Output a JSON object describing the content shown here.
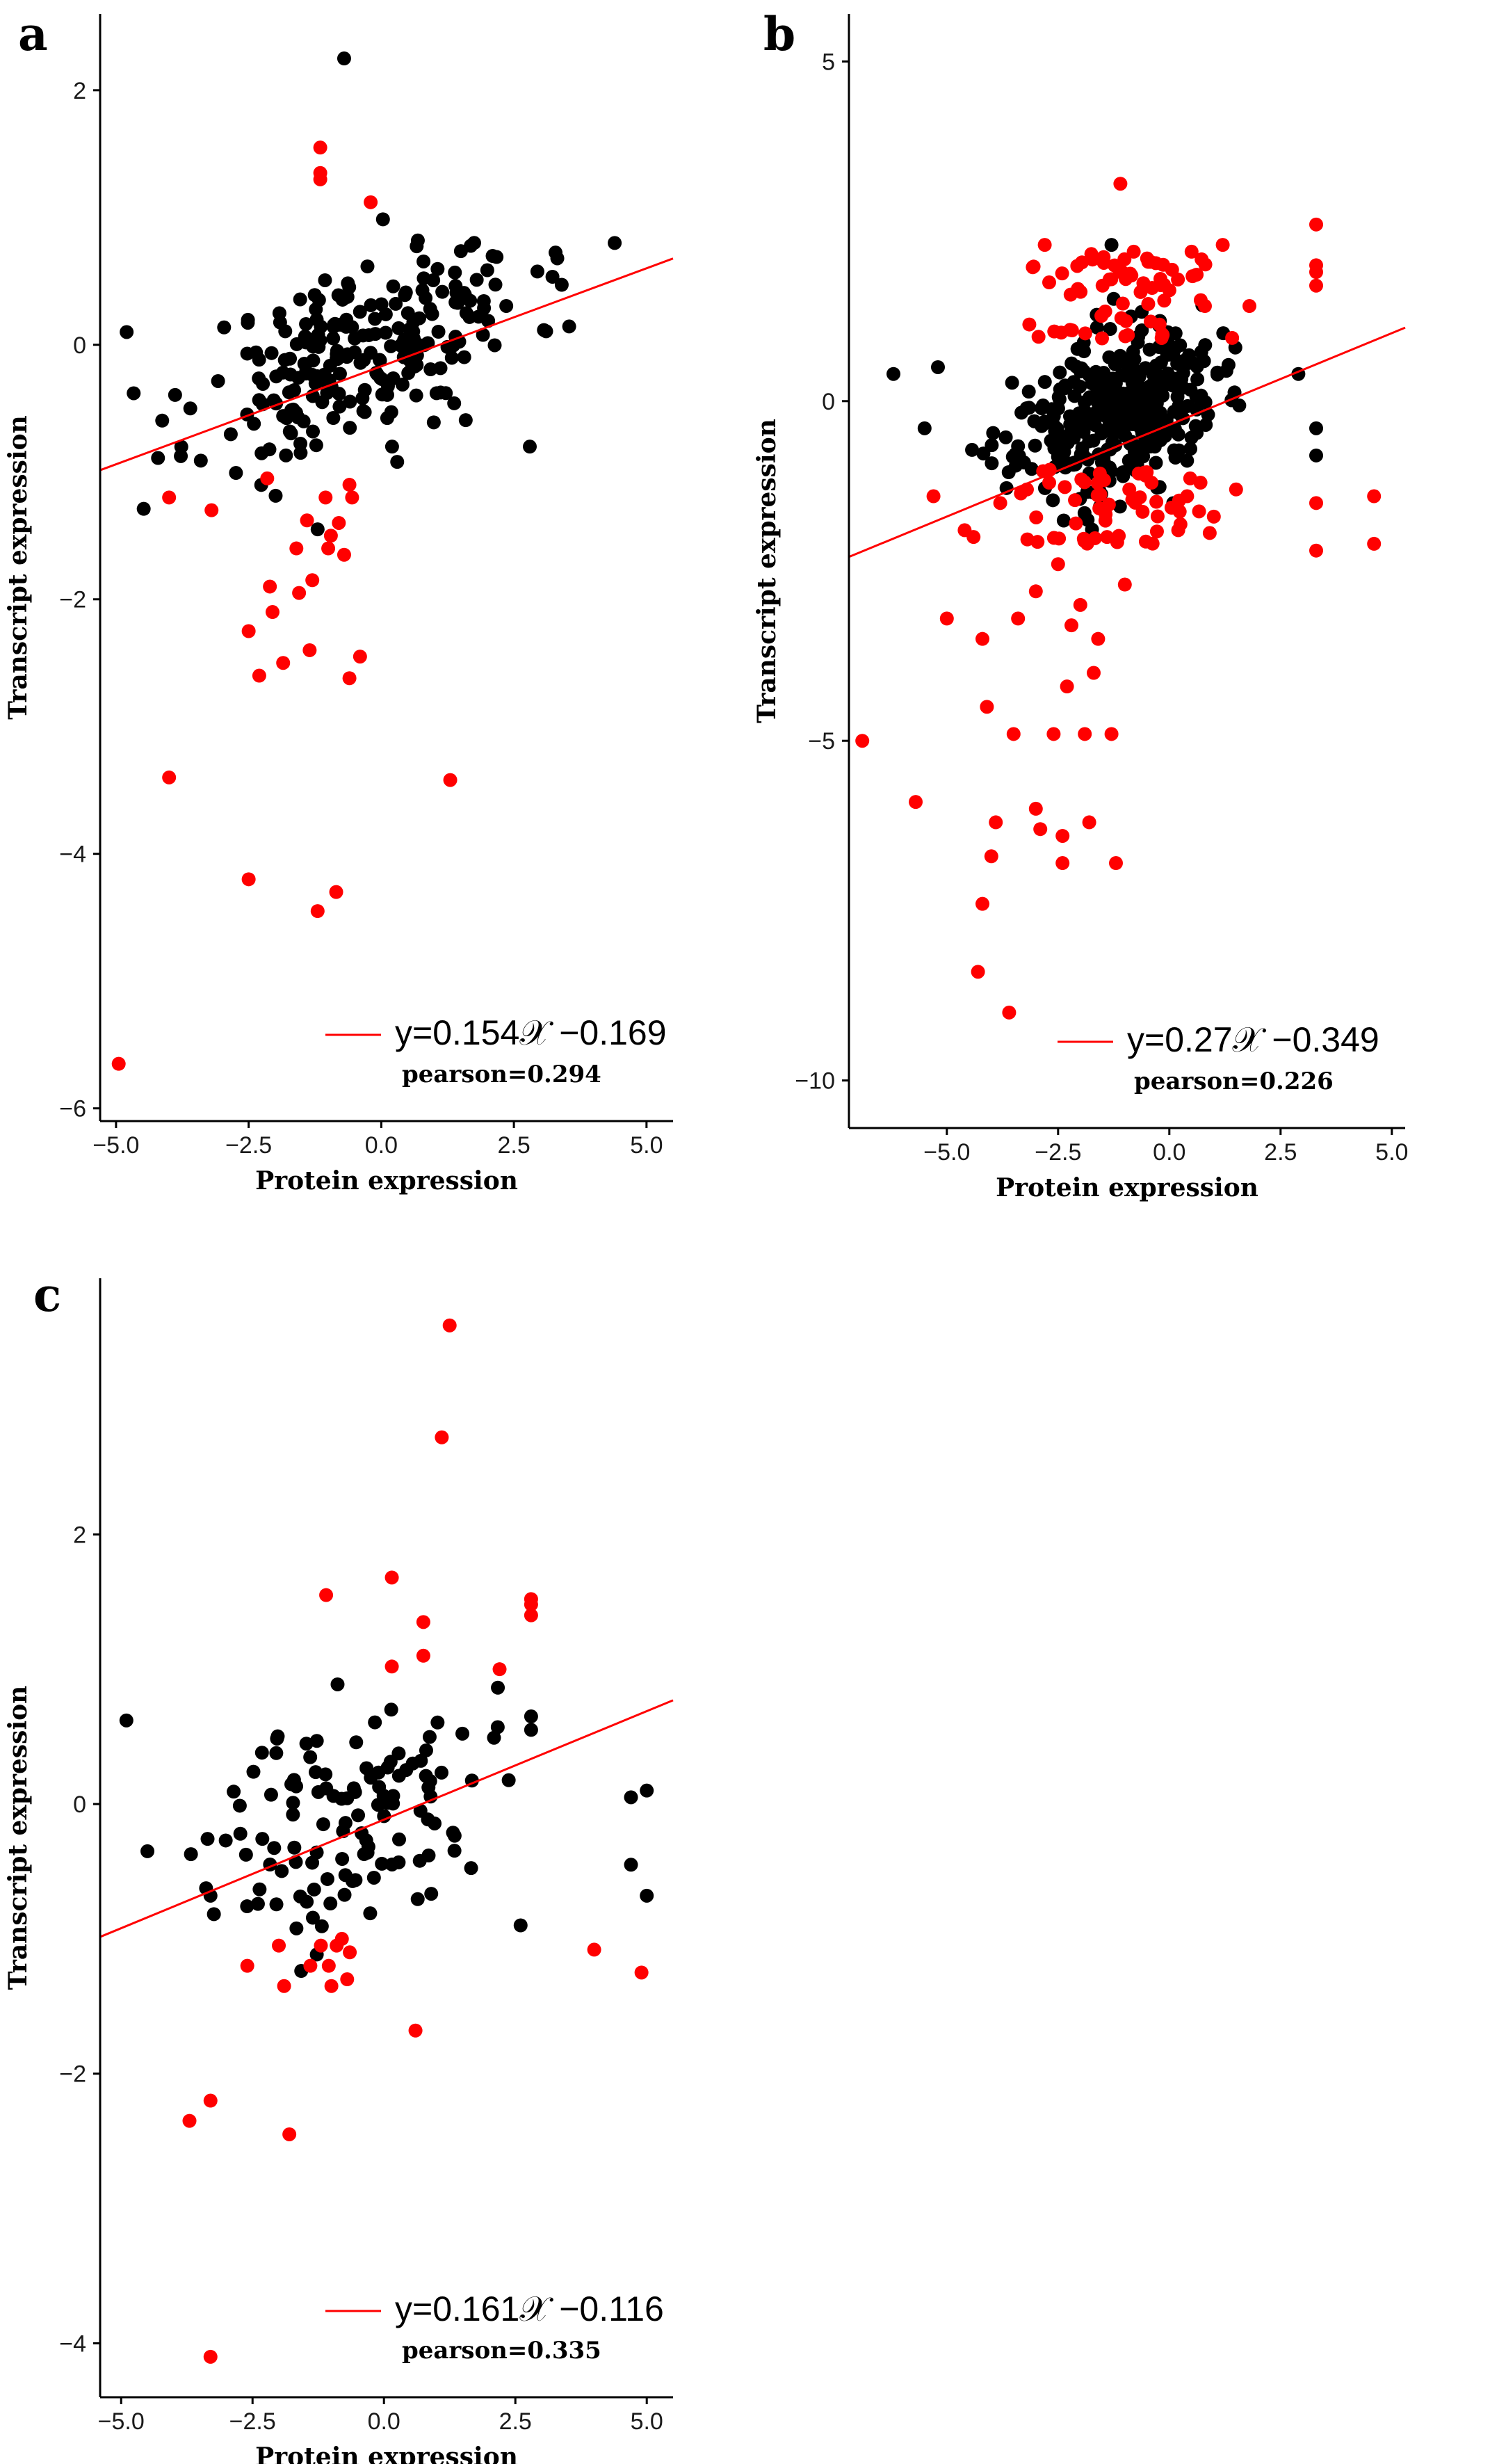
{
  "colors": {
    "in_range": "#000000",
    "outlier": "#ff0000",
    "fit_line": "#ff0000",
    "axis": "#000000"
  },
  "panels": [
    {
      "id": "a",
      "label": "a",
      "xlabel": "Protein expression",
      "ylabel": "Transcript expression",
      "xlim": [
        -5.3,
        5.5
      ],
      "ylim": [
        -6.1,
        2.6
      ],
      "xticks": [
        -5.0,
        -2.5,
        0.0,
        2.5,
        5.0
      ],
      "xtick_labels": [
        "−5.0",
        "−2.5",
        "0.0",
        "2.5",
        "5.0"
      ],
      "yticks": [
        -6,
        -4,
        -2,
        0,
        2
      ],
      "ytick_labels": [
        "−6",
        "−4",
        "−2",
        "0",
        "2"
      ],
      "fit": {
        "slope": 0.154,
        "intercept": -0.169
      },
      "legend": {
        "equation": "y=0.154𝒳 −0.169",
        "pearson": "pearson=0.294"
      },
      "cloud": {
        "n": 240,
        "xmin": -4.8,
        "xmax": 4.4,
        "xmean": -0.3,
        "xsd": 1.55,
        "ysd": 0.36,
        "seed": 11
      },
      "outliers": [
        [
          -4.95,
          -5.65
        ],
        [
          -4.0,
          -3.4
        ],
        [
          -4.0,
          -1.2
        ],
        [
          -3.2,
          -1.3
        ],
        [
          -2.5,
          -4.2
        ],
        [
          -2.5,
          -2.25
        ],
        [
          -2.3,
          -2.6
        ],
        [
          -2.15,
          -1.05
        ],
        [
          -2.1,
          -1.9
        ],
        [
          -2.05,
          -2.1
        ],
        [
          -1.85,
          -2.5
        ],
        [
          -1.6,
          -1.6
        ],
        [
          -1.55,
          -1.95
        ],
        [
          -1.4,
          -1.38
        ],
        [
          -1.35,
          -2.4
        ],
        [
          -1.3,
          -1.85
        ],
        [
          -1.2,
          -4.45
        ],
        [
          -1.15,
          1.55
        ],
        [
          -1.15,
          1.35
        ],
        [
          -1.15,
          1.3
        ],
        [
          -1.05,
          -1.2
        ],
        [
          -1.0,
          -1.6
        ],
        [
          -0.95,
          -1.5
        ],
        [
          -0.85,
          -4.3
        ],
        [
          -0.8,
          -1.4
        ],
        [
          -0.7,
          -1.65
        ],
        [
          -0.6,
          -2.62
        ],
        [
          -0.55,
          -1.2
        ],
        [
          -0.4,
          -2.45
        ],
        [
          -0.2,
          1.12
        ],
        [
          1.3,
          -3.42
        ],
        [
          -0.6,
          -1.1
        ]
      ],
      "extra_black": [
        [
          -0.7,
          2.25
        ],
        [
          -4.8,
          0.1
        ],
        [
          4.4,
          0.8
        ],
        [
          2.8,
          -0.8
        ],
        [
          -3.6,
          -0.5
        ],
        [
          -1.2,
          -1.45
        ],
        [
          0.3,
          -0.92
        ]
      ]
    },
    {
      "id": "b",
      "label": "b",
      "xlabel": "Protein expression",
      "ylabel": "Transcript expression",
      "xlim": [
        -7.2,
        5.3
      ],
      "ylim": [
        -10.7,
        5.7
      ],
      "xticks": [
        -5.0,
        -2.5,
        0.0,
        2.5,
        5.0
      ],
      "xtick_labels": [
        "−5.0",
        "−2.5",
        "0.0",
        "2.5",
        "5.0"
      ],
      "yticks": [
        -10,
        -5,
        0,
        5
      ],
      "ytick_labels": [
        "−10",
        "−5",
        "0",
        "5"
      ],
      "fit": {
        "slope": 0.27,
        "intercept": -0.349
      },
      "legend": {
        "equation": "y=0.27𝒳 −0.349",
        "pearson": "pearson=0.226"
      },
      "cloud": {
        "n": 380,
        "xmin": -6.0,
        "xmax": 3.4,
        "xmean": -1.2,
        "xsd": 1.1,
        "ysd": 0.55,
        "seed": 23
      },
      "outliers": [
        [
          -6.9,
          -5.0
        ],
        [
          -5.7,
          -5.9
        ],
        [
          -5.3,
          -1.4
        ],
        [
          -5.0,
          -3.2
        ],
        [
          -4.6,
          -1.9
        ],
        [
          -4.4,
          -2.0
        ],
        [
          -4.3,
          -8.4
        ],
        [
          -4.2,
          -7.4
        ],
        [
          -4.2,
          -3.5
        ],
        [
          -4.1,
          -4.5
        ],
        [
          -4.0,
          -6.7
        ],
        [
          -3.9,
          -6.2
        ],
        [
          -3.6,
          -9.0
        ],
        [
          -3.5,
          -4.9
        ],
        [
          -3.4,
          -3.2
        ],
        [
          -3.2,
          -1.3
        ],
        [
          -3.0,
          -6.0
        ],
        [
          -3.0,
          -2.8
        ],
        [
          -2.9,
          -6.3
        ],
        [
          -2.8,
          2.3
        ],
        [
          -2.6,
          -4.9
        ],
        [
          -2.5,
          -2.4
        ],
        [
          -2.4,
          -6.4
        ],
        [
          -2.4,
          -6.8
        ],
        [
          -2.3,
          -4.2
        ],
        [
          -2.2,
          -3.3
        ],
        [
          -2.1,
          -1.8
        ],
        [
          -2.0,
          -3.0
        ],
        [
          -1.9,
          -4.9
        ],
        [
          -1.8,
          -6.2
        ],
        [
          -1.7,
          -4.0
        ],
        [
          -1.6,
          -3.5
        ],
        [
          -1.5,
          1.7
        ],
        [
          -1.4,
          -2.0
        ],
        [
          -1.3,
          -4.9
        ],
        [
          -1.2,
          -6.8
        ],
        [
          -1.1,
          3.2
        ],
        [
          -1.0,
          -2.7
        ],
        [
          -0.9,
          -1.3
        ],
        [
          -0.8,
          2.2
        ],
        [
          -0.5,
          2.1
        ],
        [
          -0.2,
          1.8
        ],
        [
          0.2,
          -1.9
        ],
        [
          0.4,
          -1.4
        ],
        [
          0.5,
          2.2
        ],
        [
          0.8,
          1.4
        ],
        [
          1.0,
          -1.7
        ],
        [
          1.2,
          2.3
        ],
        [
          1.5,
          -1.3
        ],
        [
          1.8,
          1.4
        ],
        [
          3.3,
          2.6
        ],
        [
          3.3,
          1.7
        ],
        [
          3.3,
          1.9
        ],
        [
          3.3,
          2.0
        ],
        [
          3.3,
          -1.5
        ],
        [
          3.3,
          -2.2
        ],
        [
          4.6,
          -1.4
        ],
        [
          4.6,
          -2.1
        ],
        [
          -3.8,
          -1.5
        ],
        [
          -2.7,
          -1.2
        ],
        [
          -0.4,
          -1.2
        ],
        [
          0.7,
          -1.2
        ]
      ],
      "cloud_red": {
        "n": 110,
        "xmin": -3.4,
        "xmax": 2.8,
        "seed": 91
      },
      "extra_black": [
        [
          -6.2,
          0.4
        ],
        [
          -5.2,
          0.5
        ],
        [
          -5.5,
          -0.4
        ],
        [
          -1.3,
          2.3
        ],
        [
          2.9,
          0.4
        ],
        [
          3.3,
          -0.8
        ],
        [
          3.3,
          -0.4
        ]
      ]
    },
    {
      "id": "c",
      "label": "c",
      "xlabel": "Protein expression",
      "ylabel": "Transcript expression",
      "xlim": [
        -5.4,
        5.5
      ],
      "ylim": [
        -4.4,
        3.9
      ],
      "xticks": [
        -5.0,
        -2.5,
        0.0,
        2.5,
        5.0
      ],
      "xtick_labels": [
        "−5.0",
        "−2.5",
        "0.0",
        "2.5",
        "5.0"
      ],
      "yticks": [
        -4,
        -2,
        0,
        2
      ],
      "ytick_labels": [
        "−4",
        "−2",
        "0",
        "2"
      ],
      "fit": {
        "slope": 0.161,
        "intercept": -0.116
      },
      "legend": {
        "equation": "y=0.161𝒳 −0.116",
        "pearson": "pearson=0.335"
      },
      "cloud": {
        "n": 120,
        "xmin": -4.4,
        "xmax": 2.8,
        "xmean": -0.6,
        "xsd": 1.3,
        "ysd": 0.42,
        "seed": 37
      },
      "outliers": [
        [
          -3.7,
          -2.35
        ],
        [
          -3.3,
          -2.2
        ],
        [
          -3.3,
          -4.1
        ],
        [
          -2.6,
          -1.2
        ],
        [
          -2.0,
          -1.05
        ],
        [
          -1.9,
          -1.35
        ],
        [
          -1.8,
          -2.45
        ],
        [
          -1.4,
          -1.2
        ],
        [
          -1.2,
          -1.05
        ],
        [
          -1.1,
          1.55
        ],
        [
          -1.05,
          -1.2
        ],
        [
          -1.0,
          -1.35
        ],
        [
          -0.9,
          -1.05
        ],
        [
          -0.8,
          -1.0
        ],
        [
          -0.7,
          -1.3
        ],
        [
          -0.65,
          -1.1
        ],
        [
          0.15,
          1.68
        ],
        [
          0.15,
          1.02
        ],
        [
          0.6,
          -1.68
        ],
        [
          0.75,
          1.1
        ],
        [
          0.75,
          1.35
        ],
        [
          1.1,
          2.72
        ],
        [
          1.25,
          3.55
        ],
        [
          2.2,
          1.0
        ],
        [
          2.8,
          1.52
        ],
        [
          2.8,
          1.48
        ],
        [
          2.8,
          1.4
        ],
        [
          4.0,
          -1.08
        ],
        [
          4.9,
          -1.25
        ]
      ],
      "extra_black": [
        [
          -4.9,
          0.62
        ],
        [
          -4.5,
          -0.35
        ],
        [
          -3.3,
          -0.68
        ],
        [
          4.7,
          0.05
        ],
        [
          5.0,
          0.1
        ],
        [
          4.7,
          -0.45
        ],
        [
          5.0,
          -0.68
        ],
        [
          2.6,
          -0.9
        ],
        [
          2.8,
          0.65
        ],
        [
          2.8,
          0.55
        ]
      ]
    }
  ]
}
